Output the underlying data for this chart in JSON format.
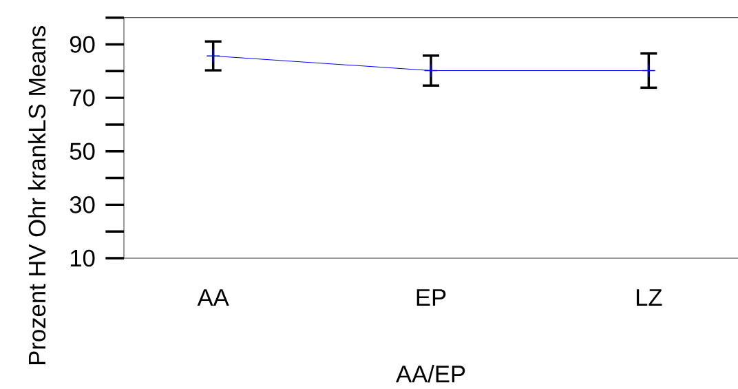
{
  "chart_data": {
    "type": "line",
    "xlabel": "AA/EP",
    "ylabel": "Prozent HV Ohr krankLS Means",
    "categories": [
      "AA",
      "EP",
      "LZ"
    ],
    "series": [
      {
        "color": "#0000ff",
        "values": [
          85.7,
          80.2,
          80.2
        ],
        "errors": [
          5.4,
          5.6,
          6.4
        ]
      }
    ],
    "ylim": [
      10,
      100
    ],
    "yticks": [
      10,
      30,
      50,
      70,
      90,
      {
        "value": 100,
        "label": null
      }
    ],
    "marker": "cross",
    "line_style": "solid"
  }
}
